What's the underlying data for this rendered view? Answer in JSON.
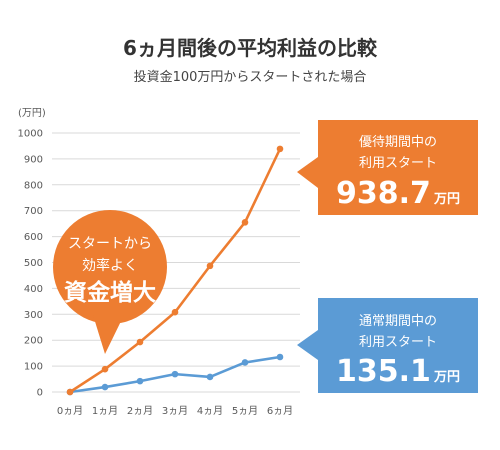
{
  "chart_data": {
    "type": "line",
    "title": "6ヵ月間後の平均利益の比較",
    "subtitle": "投資金100万円からスタートされた場合",
    "xlabel": "",
    "ylabel": "(万円)",
    "categories": [
      "0ヵ月",
      "1ヵ月",
      "2ヵ月",
      "3ヵ月",
      "4ヵ月",
      "5ヵ月",
      "6ヵ月"
    ],
    "yticks": [
      0,
      100,
      200,
      300,
      400,
      500,
      600,
      700,
      800,
      900,
      1000
    ],
    "ylim": [
      0,
      1000
    ],
    "grid": true,
    "series": [
      {
        "color": "#ED7D31",
        "values": [
          0,
          88,
          193,
          308,
          487,
          655,
          938.7
        ]
      },
      {
        "color": "#5B9BD5",
        "values": [
          0,
          19,
          42,
          69,
          58,
          114,
          135.1
        ]
      }
    ],
    "callouts": [
      {
        "line1": "優待期間中の",
        "line2": "利用スタート",
        "value": "938.7",
        "unit": "万円",
        "color": "#ED7D31"
      },
      {
        "line1": "通常期間中の",
        "line2": "利用スタート",
        "value": "135.1",
        "unit": "万円",
        "color": "#5B9BD5"
      }
    ],
    "bubble": {
      "line1": "スタートから",
      "line2": "効率よく",
      "emphasis": "資金増大",
      "color": "#ED7D31"
    }
  }
}
